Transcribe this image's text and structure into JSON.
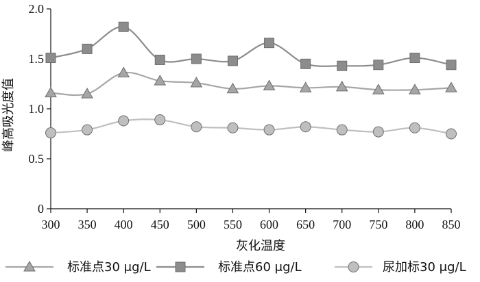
{
  "chart_data": {
    "type": "line",
    "title": "",
    "xlabel": "灰化温度",
    "ylabel": "峰高吸光度值",
    "x": [
      300,
      350,
      400,
      450,
      500,
      550,
      600,
      650,
      700,
      750,
      800,
      850
    ],
    "x_tick_labels": [
      "300",
      "350",
      "400",
      "450",
      "500",
      "550",
      "600",
      "650",
      "700",
      "750",
      "800",
      "850"
    ],
    "ylim": [
      0,
      2.0
    ],
    "y_tick_labels": [
      "0",
      "0.5",
      "1.0",
      "1.5",
      "2.0"
    ],
    "y_ticks": [
      0,
      0.5,
      1.0,
      1.5,
      2.0
    ],
    "grid": false,
    "legend_position": "bottom",
    "series": [
      {
        "name": "标准点30 μg/L",
        "marker": "triangle",
        "color": "#a6a6a6",
        "values": [
          1.16,
          1.15,
          1.36,
          1.28,
          1.26,
          1.2,
          1.23,
          1.21,
          1.22,
          1.19,
          1.19,
          1.21
        ]
      },
      {
        "name": "标准点60 μg/L",
        "marker": "square",
        "color": "#8c8c8c",
        "values": [
          1.51,
          1.6,
          1.82,
          1.49,
          1.5,
          1.48,
          1.66,
          1.45,
          1.43,
          1.44,
          1.51,
          1.44
        ]
      },
      {
        "name": "尿加标30 μg/L",
        "marker": "circle",
        "color": "#bfbfbf",
        "values": [
          0.76,
          0.79,
          0.88,
          0.89,
          0.82,
          0.81,
          0.79,
          0.82,
          0.79,
          0.77,
          0.81,
          0.75
        ]
      }
    ]
  }
}
